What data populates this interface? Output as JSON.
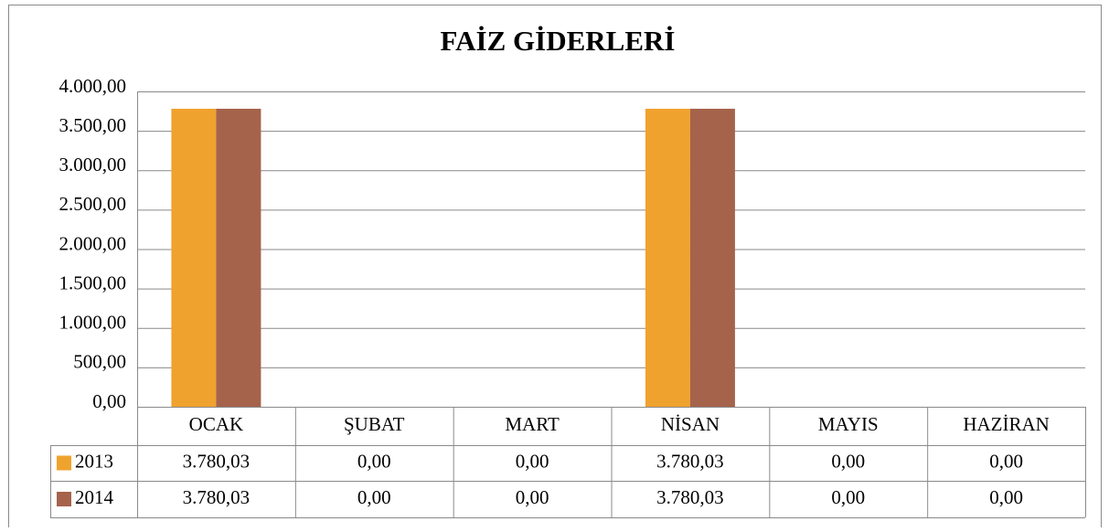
{
  "chart_data": {
    "type": "bar",
    "title": "FAİZ GİDERLERİ",
    "categories": [
      "OCAK",
      "ŞUBAT",
      "MART",
      "NİSAN",
      "MAYIS",
      "HAZİRAN"
    ],
    "series": [
      {
        "name": "2013",
        "color": "#f0a22e",
        "values": [
          3780.03,
          0,
          0,
          3780.03,
          0,
          0
        ],
        "value_labels": [
          "3.780,03",
          "0,00",
          "0,00",
          "3.780,03",
          "0,00",
          "0,00"
        ]
      },
      {
        "name": "2014",
        "color": "#a5634b",
        "values": [
          3780.03,
          0,
          0,
          3780.03,
          0,
          0
        ],
        "value_labels": [
          "3.780,03",
          "0,00",
          "0,00",
          "3.780,03",
          "0,00",
          "0,00"
        ]
      }
    ],
    "ylim": [
      0,
      4000
    ],
    "yticks": [
      {
        "value": 0,
        "label": "0,00"
      },
      {
        "value": 500,
        "label": "500,00"
      },
      {
        "value": 1000,
        "label": "1.000,00"
      },
      {
        "value": 1500,
        "label": "1.500,00"
      },
      {
        "value": 2000,
        "label": "2.000,00"
      },
      {
        "value": 2500,
        "label": "2.500,00"
      },
      {
        "value": 3000,
        "label": "3.000,00"
      },
      {
        "value": 3500,
        "label": "3.500,00"
      },
      {
        "value": 4000,
        "label": "4.000,00"
      }
    ],
    "grid": true
  }
}
